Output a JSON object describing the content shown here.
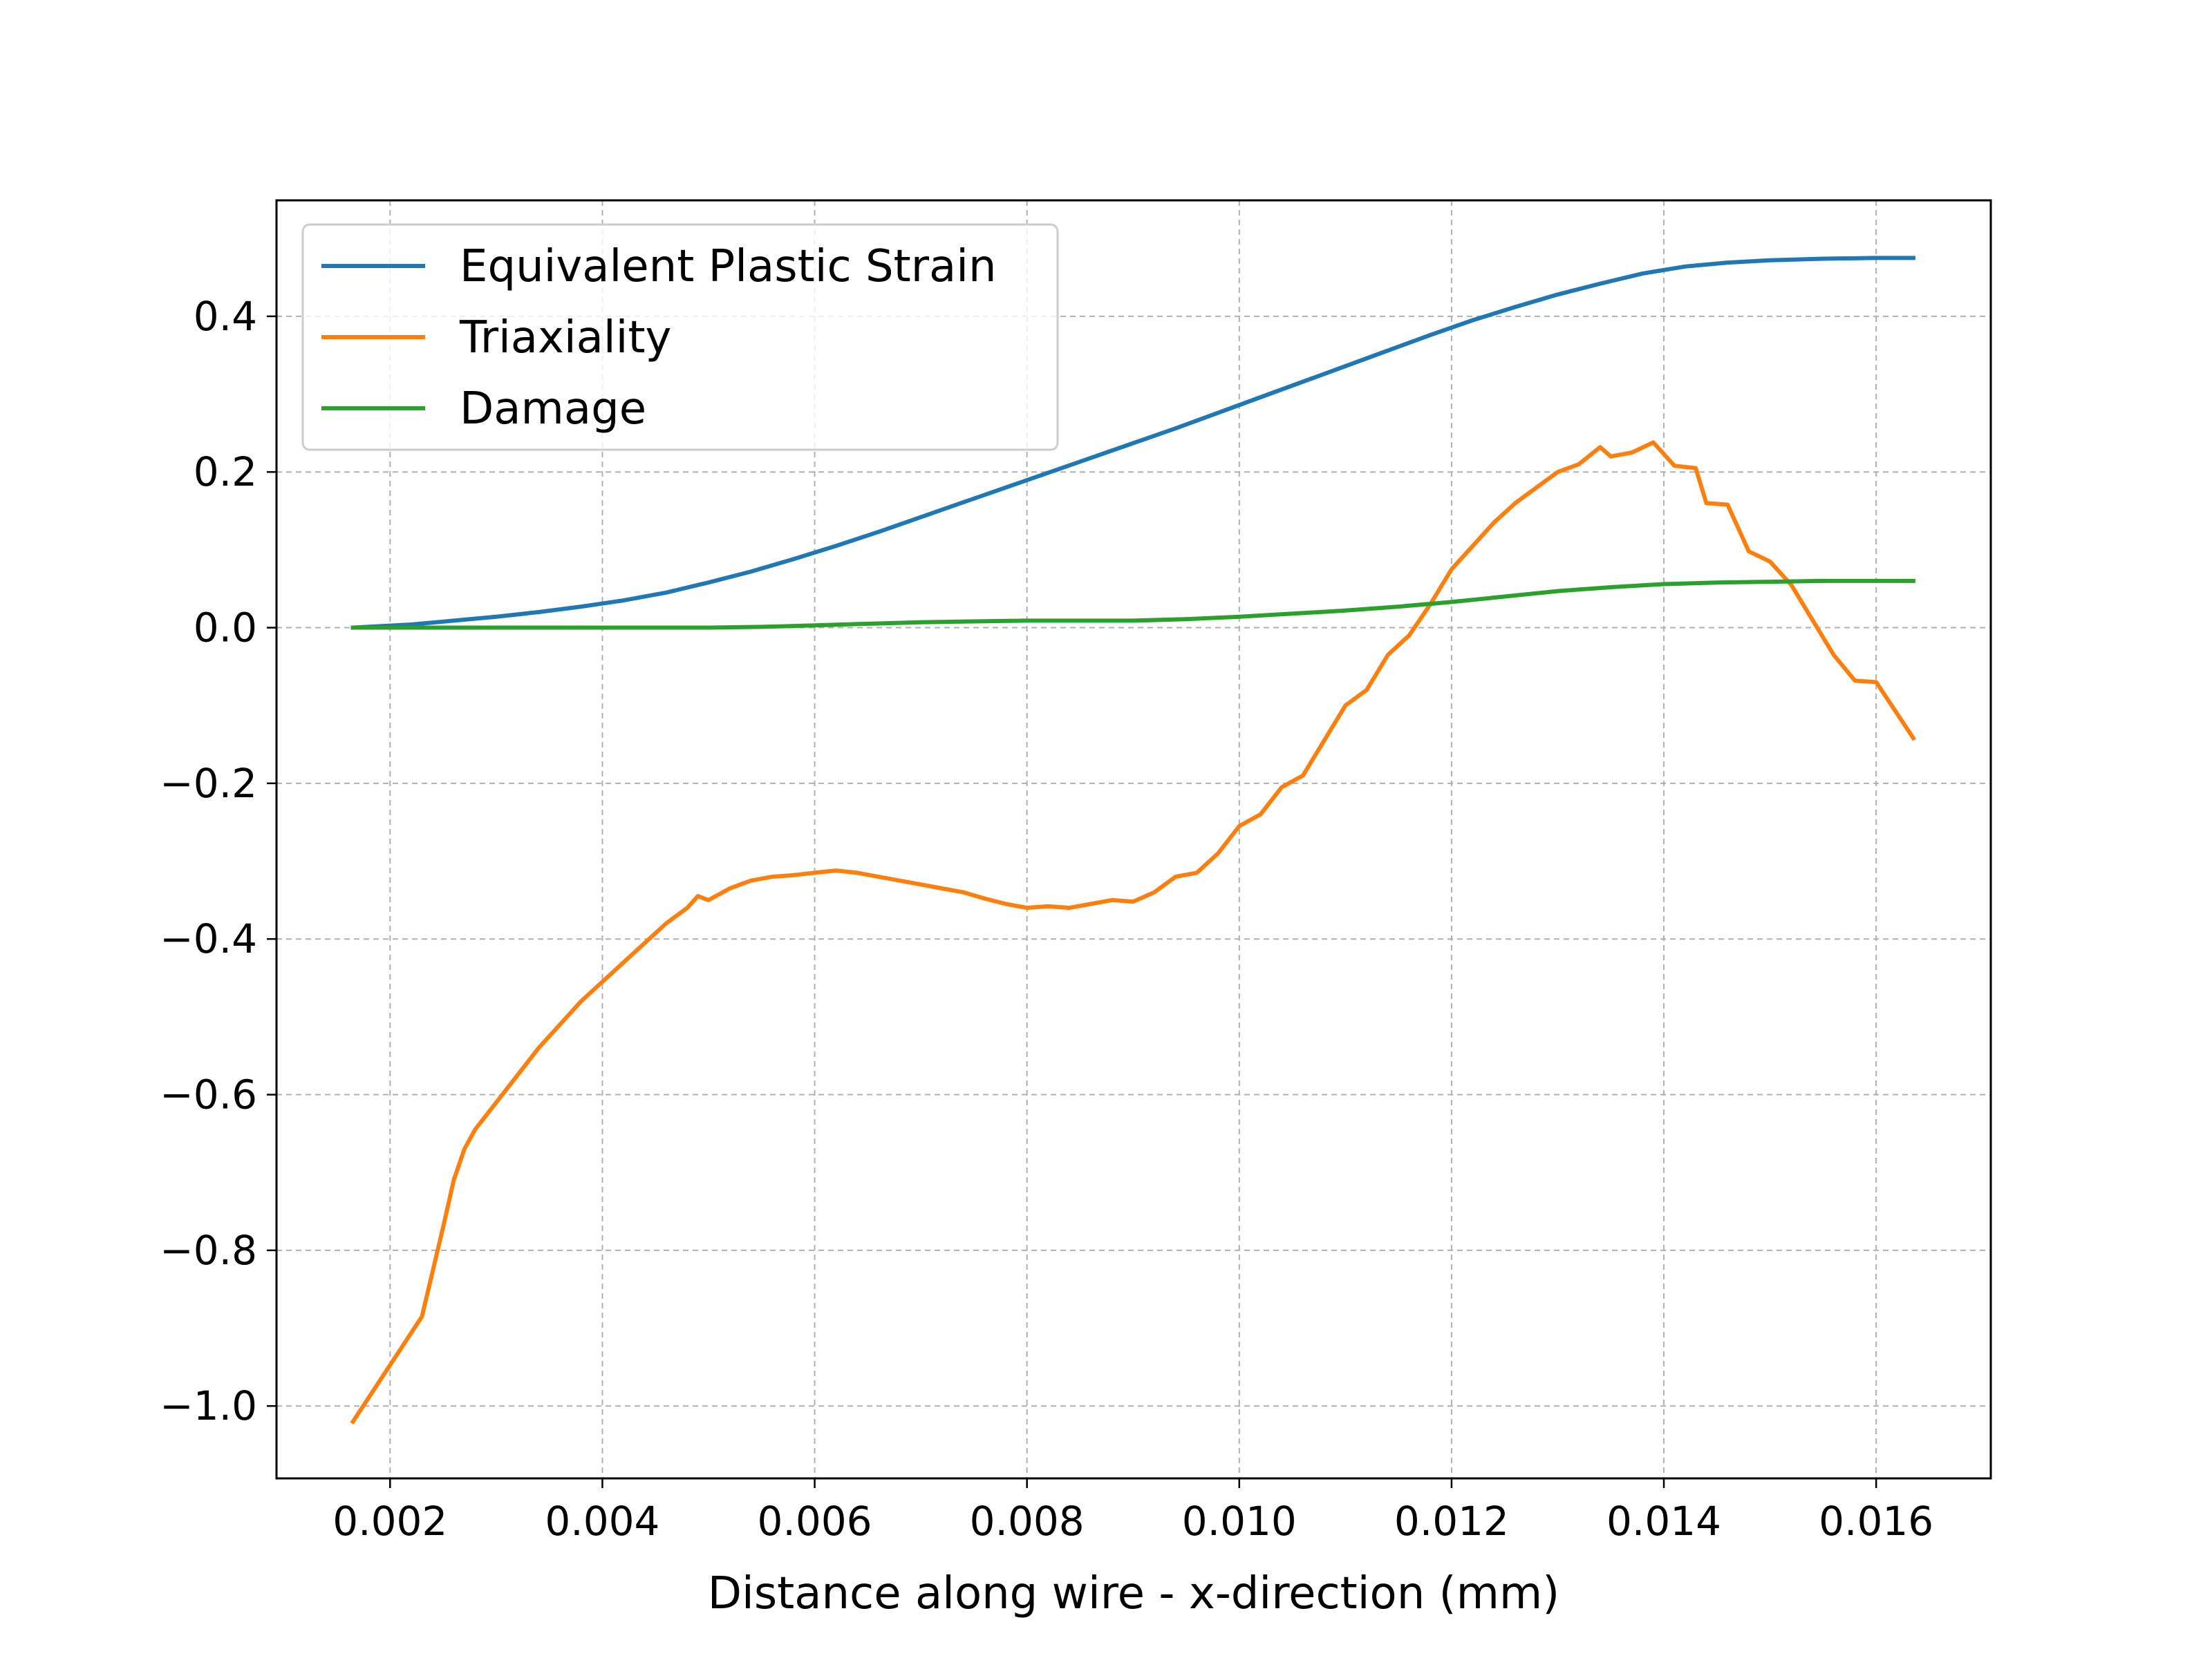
{
  "chart_data": {
    "type": "line",
    "title": "",
    "xlabel": "Distance along wire - x-direction (mm)",
    "ylabel": "",
    "xlim": [
      0.00093,
      0.01708
    ],
    "ylim": [
      -1.093,
      0.549
    ],
    "xticks": [
      0.002,
      0.004,
      0.006,
      0.008,
      0.01,
      0.012,
      0.014,
      0.016
    ],
    "xtick_labels": [
      "0.002",
      "0.004",
      "0.006",
      "0.008",
      "0.010",
      "0.012",
      "0.014",
      "0.016"
    ],
    "yticks": [
      0.4,
      0.2,
      0.0,
      -0.2,
      -0.4,
      -0.6,
      -0.8,
      -1.0
    ],
    "ytick_labels": [
      "0.4",
      "0.2",
      "0.0",
      "−0.2",
      "−0.4",
      "−0.6",
      "−0.8",
      "−1.0"
    ],
    "grid": true,
    "legend_position": "upper-left",
    "series": [
      {
        "name": "Equivalent Plastic Strain",
        "color": "#1f77b4",
        "points": [
          [
            0.00165,
            0.0
          ],
          [
            0.0022,
            0.004
          ],
          [
            0.0026,
            0.009
          ],
          [
            0.003,
            0.014
          ],
          [
            0.0034,
            0.02
          ],
          [
            0.0038,
            0.027
          ],
          [
            0.0042,
            0.035
          ],
          [
            0.0046,
            0.045
          ],
          [
            0.005,
            0.058
          ],
          [
            0.0054,
            0.072
          ],
          [
            0.0058,
            0.088
          ],
          [
            0.0062,
            0.105
          ],
          [
            0.0066,
            0.123
          ],
          [
            0.007,
            0.142
          ],
          [
            0.0074,
            0.161
          ],
          [
            0.0078,
            0.18
          ],
          [
            0.0082,
            0.199
          ],
          [
            0.0086,
            0.218
          ],
          [
            0.009,
            0.237
          ],
          [
            0.0094,
            0.256
          ],
          [
            0.0098,
            0.276
          ],
          [
            0.0102,
            0.296
          ],
          [
            0.0106,
            0.316
          ],
          [
            0.011,
            0.336
          ],
          [
            0.0114,
            0.356
          ],
          [
            0.0118,
            0.376
          ],
          [
            0.0122,
            0.395
          ],
          [
            0.0126,
            0.412
          ],
          [
            0.013,
            0.428
          ],
          [
            0.0134,
            0.442
          ],
          [
            0.0138,
            0.455
          ],
          [
            0.0142,
            0.464
          ],
          [
            0.0146,
            0.469
          ],
          [
            0.015,
            0.472
          ],
          [
            0.0155,
            0.474
          ],
          [
            0.016,
            0.475
          ],
          [
            0.01635,
            0.475
          ]
        ]
      },
      {
        "name": "Triaxiality",
        "color": "#ff7f0e",
        "points": [
          [
            0.00165,
            -1.02
          ],
          [
            0.0023,
            -0.885
          ],
          [
            0.0025,
            -0.77
          ],
          [
            0.0026,
            -0.71
          ],
          [
            0.0027,
            -0.67
          ],
          [
            0.0028,
            -0.645
          ],
          [
            0.003,
            -0.61
          ],
          [
            0.0032,
            -0.575
          ],
          [
            0.0034,
            -0.54
          ],
          [
            0.0036,
            -0.51
          ],
          [
            0.0038,
            -0.48
          ],
          [
            0.004,
            -0.455
          ],
          [
            0.0042,
            -0.43
          ],
          [
            0.0044,
            -0.405
          ],
          [
            0.0046,
            -0.38
          ],
          [
            0.0048,
            -0.36
          ],
          [
            0.0049,
            -0.345
          ],
          [
            0.005,
            -0.35
          ],
          [
            0.0052,
            -0.335
          ],
          [
            0.0054,
            -0.325
          ],
          [
            0.0056,
            -0.32
          ],
          [
            0.0058,
            -0.318
          ],
          [
            0.006,
            -0.315
          ],
          [
            0.0062,
            -0.312
          ],
          [
            0.0064,
            -0.315
          ],
          [
            0.0066,
            -0.32
          ],
          [
            0.0068,
            -0.325
          ],
          [
            0.007,
            -0.33
          ],
          [
            0.0072,
            -0.335
          ],
          [
            0.0074,
            -0.34
          ],
          [
            0.0076,
            -0.348
          ],
          [
            0.0078,
            -0.355
          ],
          [
            0.008,
            -0.36
          ],
          [
            0.0082,
            -0.358
          ],
          [
            0.0084,
            -0.36
          ],
          [
            0.0086,
            -0.355
          ],
          [
            0.0088,
            -0.35
          ],
          [
            0.009,
            -0.352
          ],
          [
            0.0092,
            -0.34
          ],
          [
            0.0094,
            -0.32
          ],
          [
            0.0096,
            -0.315
          ],
          [
            0.0098,
            -0.29
          ],
          [
            0.01,
            -0.255
          ],
          [
            0.0102,
            -0.24
          ],
          [
            0.0104,
            -0.205
          ],
          [
            0.0106,
            -0.19
          ],
          [
            0.0108,
            -0.145
          ],
          [
            0.011,
            -0.1
          ],
          [
            0.0112,
            -0.08
          ],
          [
            0.0114,
            -0.035
          ],
          [
            0.0116,
            -0.01
          ],
          [
            0.0118,
            0.03
          ],
          [
            0.012,
            0.075
          ],
          [
            0.0122,
            0.105
          ],
          [
            0.0124,
            0.135
          ],
          [
            0.0126,
            0.16
          ],
          [
            0.0128,
            0.18
          ],
          [
            0.013,
            0.2
          ],
          [
            0.0132,
            0.21
          ],
          [
            0.0134,
            0.232
          ],
          [
            0.0135,
            0.22
          ],
          [
            0.0137,
            0.225
          ],
          [
            0.0139,
            0.238
          ],
          [
            0.0141,
            0.208
          ],
          [
            0.0143,
            0.205
          ],
          [
            0.0144,
            0.16
          ],
          [
            0.0146,
            0.158
          ],
          [
            0.0148,
            0.098
          ],
          [
            0.015,
            0.085
          ],
          [
            0.0152,
            0.055
          ],
          [
            0.0154,
            0.01
          ],
          [
            0.0156,
            -0.035
          ],
          [
            0.0158,
            -0.068
          ],
          [
            0.016,
            -0.07
          ],
          [
            0.01635,
            -0.142
          ]
        ]
      },
      {
        "name": "Damage",
        "color": "#2ca02c",
        "points": [
          [
            0.00165,
            0.0
          ],
          [
            0.003,
            0.0
          ],
          [
            0.004,
            0.0
          ],
          [
            0.005,
            0.0
          ],
          [
            0.0055,
            0.001
          ],
          [
            0.006,
            0.003
          ],
          [
            0.0065,
            0.005
          ],
          [
            0.007,
            0.007
          ],
          [
            0.0075,
            0.008
          ],
          [
            0.008,
            0.009
          ],
          [
            0.0085,
            0.009
          ],
          [
            0.009,
            0.009
          ],
          [
            0.0095,
            0.011
          ],
          [
            0.01,
            0.014
          ],
          [
            0.0105,
            0.018
          ],
          [
            0.011,
            0.022
          ],
          [
            0.0115,
            0.027
          ],
          [
            0.012,
            0.033
          ],
          [
            0.0125,
            0.04
          ],
          [
            0.013,
            0.047
          ],
          [
            0.0135,
            0.052
          ],
          [
            0.014,
            0.056
          ],
          [
            0.0145,
            0.058
          ],
          [
            0.015,
            0.059
          ],
          [
            0.0155,
            0.06
          ],
          [
            0.016,
            0.06
          ],
          [
            0.01635,
            0.06
          ]
        ]
      }
    ]
  }
}
